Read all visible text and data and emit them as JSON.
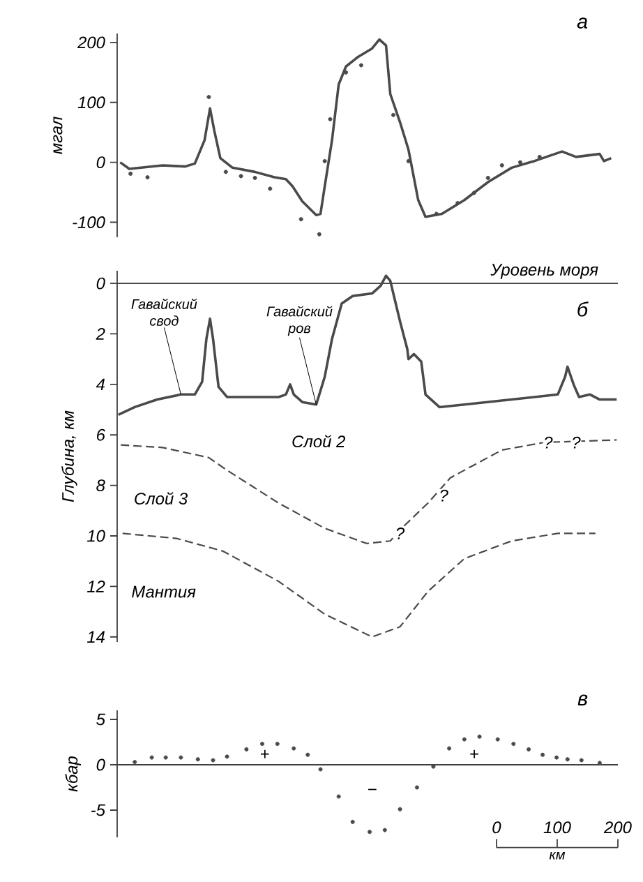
{
  "chart_data": [
    {
      "type": "line",
      "title": "а",
      "ylabel": "мгал",
      "xlim": [
        -625,
        200
      ],
      "ylim": [
        -125,
        215
      ],
      "yticks": [
        -100,
        0,
        100,
        200
      ],
      "tick_labels": "y",
      "series": [
        {
          "type": "line",
          "color": "#4a4a4a",
          "x": [
            -620,
            -605,
            -550,
            -513,
            -497,
            -481,
            -472,
            -465,
            -455,
            -435,
            -398,
            -366,
            -347,
            -336,
            -320,
            -297,
            -290,
            -283,
            -271,
            -260,
            -248,
            -228,
            -205,
            -193,
            -182,
            -175,
            -159,
            -145,
            -129,
            -117,
            -90,
            -53,
            -14,
            25,
            62,
            108,
            131,
            170,
            177,
            189
          ],
          "values": [
            0,
            -11,
            -5,
            -7,
            -2,
            37,
            90,
            53,
            7,
            -9,
            -16,
            -25,
            -28,
            -40,
            -65,
            -88,
            -86,
            -40,
            37,
            130,
            160,
            176,
            190,
            205,
            195,
            114,
            67,
            21,
            -63,
            -91,
            -86,
            -63,
            -33,
            -9,
            2,
            18,
            9,
            14,
            2,
            7
          ]
        },
        {
          "type": "scatter",
          "marker": "circle",
          "color": "#4a4a4a",
          "x": [
            -603,
            -575,
            -474,
            -446,
            -421,
            -398,
            -373,
            -322,
            -292,
            -283,
            -274,
            -248,
            -223,
            -170,
            -145,
            -99,
            -64,
            -37,
            -14,
            9,
            39,
            71
          ],
          "values": [
            -19,
            -25,
            109,
            -16,
            -23,
            -26,
            -44,
            -95,
            -120,
            2,
            72,
            150,
            162,
            79,
            2,
            -86,
            -68,
            -51,
            -26,
            -5,
            0,
            9
          ]
        }
      ]
    },
    {
      "type": "line",
      "title": "б",
      "ylabel": "Глубина, км",
      "xlim": [
        -625,
        200
      ],
      "ylim": [
        14.2,
        -0.5
      ],
      "yticks": [
        0,
        2,
        4,
        6,
        8,
        10,
        12,
        14
      ],
      "tick_labels": "y",
      "ref_lines": [
        {
          "axis": "y",
          "value": 0,
          "label": "Уровень моря"
        }
      ],
      "annotations": [
        {
          "text": "Гавайский свод",
          "x": -520,
          "y": 4.4
        },
        {
          "text": "Гавайский ров",
          "x": -297,
          "y": 4.8
        },
        "Слой 2",
        "Слой 3",
        "Мантия",
        {
          "text": "?",
          "x": -159,
          "y": 9.9
        },
        {
          "text": "?",
          "x": -87,
          "y": 8.4
        },
        {
          "text": "?",
          "x": 85,
          "y": 6.3
        },
        {
          "text": "?",
          "x": 131,
          "y": 6.3
        }
      ],
      "series": [
        {
          "type": "line",
          "color": "#4a4a4a",
          "x": [
            -623,
            -596,
            -559,
            -520,
            -497,
            -485,
            -478,
            -472,
            -467,
            -458,
            -444,
            -359,
            -347,
            -340,
            -334,
            -320,
            -297,
            -283,
            -271,
            -255,
            -237,
            -205,
            -191,
            -182,
            -175,
            -159,
            -147,
            -145,
            -136,
            -124,
            -117,
            -94,
            -53,
            25,
            101,
            113,
            117,
            127,
            136,
            154,
            170,
            198
          ],
          "values": [
            5.2,
            4.9,
            4.6,
            4.4,
            4.4,
            3.9,
            2.2,
            1.4,
            2.2,
            4.1,
            4.5,
            4.5,
            4.4,
            4.0,
            4.4,
            4.7,
            4.8,
            3.7,
            2.2,
            0.8,
            0.5,
            0.4,
            0.1,
            -0.3,
            -0.1,
            1.5,
            2.6,
            3.0,
            2.8,
            3.1,
            4.4,
            4.9,
            4.8,
            4.6,
            4.4,
            3.7,
            3.3,
            4.0,
            4.5,
            4.4,
            4.6,
            4.6
          ]
        },
        {
          "type": "line",
          "line_style": "dashed",
          "color": "#4a4a4a",
          "x": [
            -619,
            -550,
            -474,
            -444,
            -359,
            -283,
            -214,
            -175,
            -152,
            -113,
            -76,
            -53,
            9,
            78,
            198
          ],
          "values": [
            6.4,
            6.5,
            6.9,
            7.4,
            8.7,
            9.7,
            10.3,
            10.2,
            9.6,
            8.7,
            7.7,
            7.4,
            6.6,
            6.3,
            6.2
          ]
        },
        {
          "type": "line",
          "line_style": "dashed",
          "color": "#4a4a4a",
          "x": [
            -616,
            -527,
            -451,
            -359,
            -283,
            -205,
            -159,
            -113,
            -53,
            25,
            101,
            163
          ],
          "values": [
            9.9,
            10.1,
            10.6,
            11.8,
            13.1,
            14.0,
            13.6,
            12.2,
            10.9,
            10.2,
            9.9,
            9.9
          ]
        }
      ]
    },
    {
      "type": "scatter",
      "title": "в",
      "ylabel": "кбар",
      "xlabel": "км",
      "xlim": [
        -625,
        200
      ],
      "ylim": [
        -8,
        6
      ],
      "yticks": [
        -5,
        0,
        5
      ],
      "xticks": [
        0,
        100,
        200
      ],
      "marker": "circle",
      "ref_lines": [
        {
          "axis": "y",
          "value": 0
        }
      ],
      "annotations": [
        {
          "text": "+",
          "x": -382,
          "y": 1.1
        },
        {
          "text": "−",
          "x": -205,
          "y": -3
        },
        {
          "text": "+",
          "x": -37,
          "y": 1.1
        }
      ],
      "series": [
        {
          "color": "#4a4a4a",
          "x": [
            -596,
            -568,
            -545,
            -520,
            -492,
            -467,
            -444,
            -412,
            -386,
            -361,
            -334,
            -311,
            -290,
            -260,
            -237,
            -209,
            -184,
            -159,
            -131,
            -104,
            -78,
            -53,
            -28,
            2,
            28,
            53,
            76,
            99,
            117,
            140,
            170
          ],
          "values": [
            0.3,
            0.8,
            0.8,
            0.8,
            0.6,
            0.5,
            0.9,
            1.7,
            2.3,
            2.3,
            1.8,
            1.1,
            -0.5,
            -3.5,
            -6.3,
            -7.4,
            -7.2,
            -4.9,
            -2.5,
            -0.2,
            1.8,
            2.8,
            3.1,
            2.8,
            2.3,
            1.7,
            1.1,
            0.8,
            0.6,
            0.5,
            0.2
          ]
        }
      ]
    }
  ]
}
